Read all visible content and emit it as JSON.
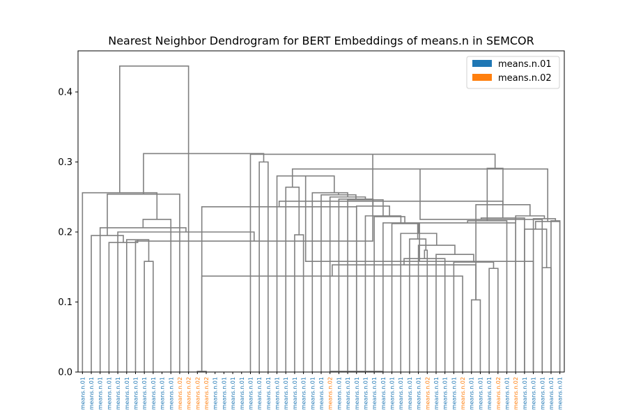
{
  "chart_data": {
    "type": "dendrogram",
    "title": "Nearest Neighbor Dendrogram for BERT Embeddings of means.n in SEMCOR",
    "xlabel": "",
    "ylabel": "",
    "ylim": [
      0,
      0.46
    ],
    "yticks": [
      "0.0",
      "0.1",
      "0.2",
      "0.3",
      "0.4"
    ],
    "grid": false,
    "legend": {
      "placement": "top-right",
      "entries": [
        {
          "label": "means.n.01",
          "color": "#1f77b4"
        },
        {
          "label": "means.n.02",
          "color": "#ff7f0e"
        }
      ]
    },
    "link_color": "#808080",
    "leaves": [
      "means.n.01",
      "means.n.01",
      "means.n.01",
      "means.n.01",
      "means.n.01",
      "means.n.01",
      "means.n.01",
      "means.n.01",
      "means.n.01",
      "means.n.01",
      "means.n.01",
      "means.n.02",
      "means.n.02",
      "means.n.02",
      "means.n.02",
      "means.n.01",
      "means.n.01",
      "means.n.01",
      "means.n.01",
      "means.n.01",
      "means.n.01",
      "means.n.01",
      "means.n.01",
      "means.n.01",
      "means.n.01",
      "means.n.01",
      "means.n.01",
      "means.n.01",
      "means.n.02",
      "means.n.01",
      "means.n.01",
      "means.n.01",
      "means.n.01",
      "means.n.01",
      "means.n.01",
      "means.n.01",
      "means.n.01",
      "means.n.01",
      "means.n.01",
      "means.n.02",
      "means.n.01",
      "means.n.01",
      "means.n.01",
      "means.n.02",
      "means.n.01",
      "means.n.01",
      "means.n.01",
      "means.n.02",
      "means.n.01",
      "means.n.02",
      "means.n.01",
      "means.n.01",
      "means.n.01",
      "means.n.01",
      "means.n.01"
    ],
    "merges": [
      [
        28,
        34,
        0.001
      ],
      [
        13,
        14,
        0.001
      ],
      [
        44,
        45,
        0.103
      ],
      [
        43,
        56,
        0.137
      ],
      [
        46,
        47,
        0.148
      ],
      [
        57,
        58,
        0.153
      ],
      [
        42,
        59,
        0.157
      ],
      [
        41,
        60,
        0.162
      ],
      [
        40,
        61,
        0.168
      ],
      [
        39,
        62,
        0.174
      ],
      [
        38,
        63,
        0.181
      ],
      [
        37,
        64,
        0.19
      ],
      [
        36,
        65,
        0.198
      ],
      [
        35,
        66,
        0.212
      ],
      [
        34,
        67,
        0.213
      ],
      [
        33,
        68,
        0.222
      ],
      [
        32,
        69,
        0.223
      ],
      [
        31,
        70,
        0.237
      ],
      [
        30,
        71,
        0.246
      ],
      [
        29,
        72,
        0.247
      ],
      [
        28,
        73,
        0.25
      ],
      [
        27,
        74,
        0.253
      ],
      [
        26,
        75,
        0.256
      ],
      [
        24,
        25,
        0.196
      ],
      [
        77,
        76,
        0.256
      ],
      [
        23,
        78,
        0.264
      ],
      [
        22,
        79,
        0.28
      ],
      [
        52,
        53,
        0.149
      ],
      [
        51,
        81,
        0.158
      ],
      [
        50,
        82,
        0.204
      ],
      [
        49,
        83,
        0.213
      ],
      [
        84,
        54,
        0.215
      ],
      [
        48,
        85,
        0.216
      ],
      [
        80,
        86,
        0.29
      ],
      [
        53,
        54,
        0.216
      ],
      [
        52,
        88,
        0.218
      ],
      [
        51,
        89,
        0.219
      ],
      [
        50,
        90,
        0.22
      ],
      [
        49,
        91,
        0.223
      ],
      [
        55,
        56,
        0.236
      ],
      [
        57,
        93,
        0.239
      ],
      [
        92,
        94,
        0.244
      ],
      [
        95,
        87,
        0.291
      ],
      [
        20,
        21,
        0.3
      ],
      [
        19,
        97,
        0.311
      ],
      [
        7,
        8,
        0.158
      ],
      [
        6,
        99,
        0.187
      ],
      [
        5,
        100,
        0.189
      ],
      [
        4,
        101,
        0.2
      ],
      [
        3,
        102,
        0.185
      ],
      [
        2,
        103,
        0.206
      ],
      [
        1,
        104,
        0.195
      ],
      [
        105,
        10,
        0.218
      ],
      [
        106,
        11,
        0.254
      ],
      [
        0,
        107,
        0.256
      ],
      [
        108,
        98,
        0.312
      ],
      [
        109,
        12,
        0.437
      ]
    ]
  }
}
